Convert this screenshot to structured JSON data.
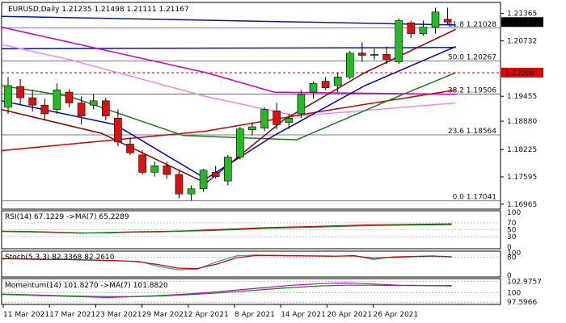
{
  "chart_data": [
    {
      "type": "candlestick",
      "panel": "price",
      "header": {
        "symbol": "EURUSD",
        "timeframe": "Daily",
        "open": "1.21235",
        "high": "1.21498",
        "low": "1.21111",
        "close": "1.21167"
      },
      "price_labels": [
        "1.21365",
        "1.20732",
        "1.20000",
        "1.19455",
        "1.18880",
        "1.18225",
        "1.17595",
        "1.16965"
      ],
      "ylim": [
        1.1685,
        1.2162
      ],
      "last_price": "1.21167",
      "level_label": "1.20000",
      "level_value": 1.2,
      "fibo": [
        {
          "label": "61.8 1.21028",
          "value": 1.21028
        },
        {
          "label": "50.0 1.20267",
          "value": 1.20267
        },
        {
          "label": "38.2 1.19506",
          "value": 1.19506
        },
        {
          "label": "23.6 1.18564",
          "value": 1.18564
        },
        {
          "label": "0.0 1.17041",
          "value": 1.17041
        }
      ],
      "dates": [
        "11 Mar 2021",
        "17 Mar 2021",
        "23 Mar 2021",
        "29 Mar 2021",
        "2 Apr 2021",
        "8 Apr 2021",
        "14 Apr 2021",
        "20 Apr 2021",
        "26 Apr 2021"
      ],
      "candles": [
        {
          "o": 1.192,
          "h": 1.199,
          "l": 1.1905,
          "c": 1.197
        },
        {
          "o": 1.1968,
          "h": 1.1985,
          "l": 1.1925,
          "c": 1.1942
        },
        {
          "o": 1.1942,
          "h": 1.196,
          "l": 1.191,
          "c": 1.1925
        },
        {
          "o": 1.1925,
          "h": 1.194,
          "l": 1.189,
          "c": 1.1905
        },
        {
          "o": 1.1915,
          "h": 1.1975,
          "l": 1.1905,
          "c": 1.196
        },
        {
          "o": 1.1955,
          "h": 1.1962,
          "l": 1.192,
          "c": 1.193
        },
        {
          "o": 1.193,
          "h": 1.1945,
          "l": 1.188,
          "c": 1.19
        },
        {
          "o": 1.1925,
          "h": 1.195,
          "l": 1.1915,
          "c": 1.1935
        },
        {
          "o": 1.1935,
          "h": 1.1942,
          "l": 1.189,
          "c": 1.19
        },
        {
          "o": 1.1895,
          "h": 1.1915,
          "l": 1.183,
          "c": 1.184
        },
        {
          "o": 1.1835,
          "h": 1.185,
          "l": 1.181,
          "c": 1.1815
        },
        {
          "o": 1.181,
          "h": 1.182,
          "l": 1.1765,
          "c": 1.177
        },
        {
          "o": 1.177,
          "h": 1.1795,
          "l": 1.176,
          "c": 1.1785
        },
        {
          "o": 1.1785,
          "h": 1.1795,
          "l": 1.1755,
          "c": 1.1765
        },
        {
          "o": 1.1765,
          "h": 1.1775,
          "l": 1.171,
          "c": 1.172
        },
        {
          "o": 1.172,
          "h": 1.174,
          "l": 1.1705,
          "c": 1.1732
        },
        {
          "o": 1.1732,
          "h": 1.1778,
          "l": 1.1725,
          "c": 1.1775
        },
        {
          "o": 1.177,
          "h": 1.1785,
          "l": 1.1755,
          "c": 1.176
        },
        {
          "o": 1.175,
          "h": 1.181,
          "l": 1.174,
          "c": 1.1805
        },
        {
          "o": 1.1805,
          "h": 1.1875,
          "l": 1.18,
          "c": 1.187
        },
        {
          "o": 1.1868,
          "h": 1.1885,
          "l": 1.1855,
          "c": 1.1875
        },
        {
          "o": 1.1872,
          "h": 1.192,
          "l": 1.1865,
          "c": 1.1915
        },
        {
          "o": 1.1912,
          "h": 1.193,
          "l": 1.187,
          "c": 1.188
        },
        {
          "o": 1.1885,
          "h": 1.1905,
          "l": 1.187,
          "c": 1.1895
        },
        {
          "o": 1.1905,
          "h": 1.196,
          "l": 1.1895,
          "c": 1.195
        },
        {
          "o": 1.1955,
          "h": 1.198,
          "l": 1.194,
          "c": 1.1975
        },
        {
          "o": 1.198,
          "h": 1.199,
          "l": 1.196,
          "c": 1.1965
        },
        {
          "o": 1.197,
          "h": 1.2,
          "l": 1.1955,
          "c": 1.199
        },
        {
          "o": 1.199,
          "h": 1.205,
          "l": 1.1985,
          "c": 1.2045
        },
        {
          "o": 1.2045,
          "h": 1.207,
          "l": 1.2025,
          "c": 1.204
        },
        {
          "o": 1.204,
          "h": 1.2055,
          "l": 1.203,
          "c": 1.2042
        },
        {
          "o": 1.2042,
          "h": 1.206,
          "l": 1.202,
          "c": 1.203
        },
        {
          "o": 1.2025,
          "h": 1.2125,
          "l": 1.202,
          "c": 1.212
        },
        {
          "o": 1.2115,
          "h": 1.212,
          "l": 1.208,
          "c": 1.209
        },
        {
          "o": 1.209,
          "h": 1.212,
          "l": 1.2085,
          "c": 1.2105
        },
        {
          "o": 1.2105,
          "h": 1.215,
          "l": 1.209,
          "c": 1.214
        },
        {
          "o": 1.2123,
          "h": 1.215,
          "l": 1.2111,
          "c": 1.2117
        }
      ],
      "lines": [
        {
          "color": "#0a1a8a",
          "pts": [
            [
              1.213,
              0
            ],
            [
              1.211,
              1
            ]
          ]
        },
        {
          "color": "#0a1a8a",
          "pts": [
            [
              1.2055,
              0
            ],
            [
              1.2058,
              1
            ]
          ]
        },
        {
          "color": "#cc00cc",
          "pts": [
            [
              1.2105,
              0
            ],
            [
              1.207,
              0.15
            ],
            [
              1.2,
              0.45
            ],
            [
              1.1955,
              0.6
            ],
            [
              1.195,
              1
            ]
          ]
        },
        {
          "color": "#ee88ee",
          "pts": [
            [
              1.2065,
              0
            ],
            [
              1.203,
              0.15
            ],
            [
              1.1945,
              0.45
            ],
            [
              1.19,
              0.65
            ],
            [
              1.193,
              1
            ]
          ]
        },
        {
          "color": "#cc0000",
          "pts": [
            [
              1.182,
              0
            ],
            [
              1.1865,
              0.45
            ],
            [
              1.191,
              0.7
            ],
            [
              1.196,
              1
            ]
          ]
        },
        {
          "color": "#1e7a1e",
          "pts": [
            [
              1.197,
              0
            ],
            [
              1.1945,
              0.15
            ],
            [
              1.1855,
              0.4
            ],
            [
              1.1845,
              0.65
            ],
            [
              1.1935,
              0.85
            ],
            [
              1.2,
              1
            ]
          ]
        },
        {
          "color": "#0000cc",
          "pts": [
            [
              1.1935,
              0
            ],
            [
              1.188,
              0.25
            ],
            [
              1.1755,
              0.45
            ],
            [
              1.1855,
              0.6
            ],
            [
              1.197,
              0.8
            ],
            [
              1.206,
              1
            ]
          ]
        },
        {
          "color": "#8b0000",
          "pts": [
            [
              1.1915,
              0
            ],
            [
              1.186,
              0.22
            ],
            [
              1.1745,
              0.45
            ],
            [
              1.189,
              0.62
            ],
            [
              1.2,
              0.8
            ],
            [
              1.21,
              1
            ]
          ]
        }
      ]
    },
    {
      "type": "line",
      "panel": "RSI",
      "label": "RSI(14) 67.1229",
      "ma_label": "->MA(7) 65.2289",
      "ylim": [
        0,
        100
      ],
      "levels": [
        "100",
        "70",
        "50",
        "30",
        "0"
      ],
      "series": [
        {
          "color": "#cc0000",
          "values": [
            45,
            44,
            42,
            40,
            42,
            44,
            45,
            47,
            50,
            53,
            56,
            58,
            60,
            62,
            64,
            65,
            66,
            67
          ]
        },
        {
          "color": "#1e7a1e",
          "values": [
            46,
            45,
            43,
            41,
            41,
            43,
            44,
            46,
            48,
            51,
            54,
            56,
            58,
            60,
            62,
            63,
            64,
            65
          ]
        }
      ]
    },
    {
      "type": "line",
      "panel": "Stoch",
      "label": "Stoch(5,3,3) 82.3368 82.2610",
      "ylim": [
        0,
        100
      ],
      "levels": [
        "100",
        "80",
        "0"
      ],
      "series": [
        {
          "color": "#2a9a9a",
          "values": [
            75,
            72,
            70,
            72,
            68,
            66,
            64,
            62,
            40,
            25,
            28,
            60,
            86,
            90,
            88,
            86,
            85,
            84,
            88,
            70,
            82,
            84,
            86,
            82
          ]
        },
        {
          "color": "#cc0000",
          "values": [
            74,
            73,
            71,
            70,
            69,
            67,
            65,
            60,
            48,
            32,
            30,
            50,
            78,
            88,
            88,
            87,
            86,
            85,
            86,
            76,
            80,
            83,
            85,
            82
          ]
        }
      ]
    },
    {
      "type": "line",
      "panel": "Momentum",
      "label": "Momentum(14) 101.8270",
      "ma_label": "->MA(7) 101.8820",
      "ylim": [
        97.4,
        103.3
      ],
      "levels": [
        "102.9757",
        "100",
        "97.5966"
      ],
      "series": [
        {
          "color": "#cc00cc",
          "values": [
            99.6,
            99.4,
            99.2,
            99.0,
            98.8,
            99.0,
            99.3,
            99.7,
            100.2,
            100.8,
            101.4,
            102.0,
            102.4,
            102.6,
            102.3,
            102.0,
            101.9,
            101.8
          ]
        },
        {
          "color": "#1e7a1e",
          "values": [
            99.7,
            99.5,
            99.3,
            99.1,
            99.0,
            99.0,
            99.2,
            99.5,
            99.9,
            100.4,
            100.9,
            101.4,
            101.8,
            102.0,
            102.0,
            101.9,
            101.9,
            101.9
          ]
        }
      ]
    }
  ]
}
